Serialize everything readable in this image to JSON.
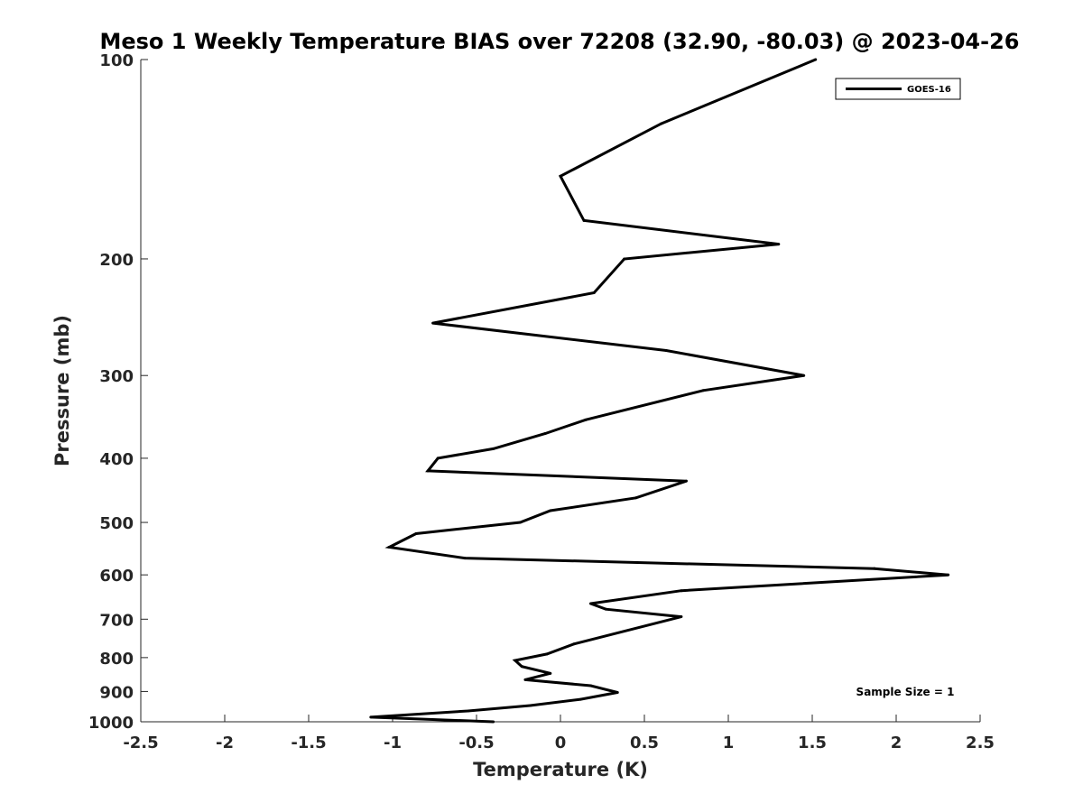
{
  "chart_data": {
    "type": "line",
    "title": "Meso 1 Weekly Temperature BIAS over 72208 (32.90, -80.03) @ 2023-04-26",
    "xlabel": "Temperature (K)",
    "ylabel": "Pressure (mb)",
    "xlim": [
      -2.5,
      2.5
    ],
    "ylim": [
      100,
      1000
    ],
    "yscale": "log",
    "reversed_y": true,
    "grid": false,
    "x_ticks": [
      -2.5,
      -2,
      -1.5,
      -1,
      -0.5,
      0,
      0.5,
      1,
      1.5,
      2,
      2.5
    ],
    "x_tick_labels": [
      "-2.5",
      "-2",
      "-1.5",
      "-1",
      "-0.5",
      "0",
      "0.5",
      "1",
      "1.5",
      "2",
      "2.5"
    ],
    "y_ticks": [
      100,
      200,
      300,
      400,
      500,
      600,
      700,
      800,
      900,
      1000
    ],
    "y_tick_labels": [
      "100",
      "200",
      "300",
      "400",
      "500",
      "600",
      "700",
      "800",
      "900",
      "1000"
    ],
    "legend_position": "top-right",
    "annotation": "Sample Size = 1",
    "series": [
      {
        "name": "GOES-16",
        "color": "#000000",
        "points": [
          {
            "x": 1.52,
            "y": 100
          },
          {
            "x": 0.6,
            "y": 125
          },
          {
            "x": 0.0,
            "y": 150
          },
          {
            "x": 0.14,
            "y": 175
          },
          {
            "x": 1.3,
            "y": 190
          },
          {
            "x": 0.38,
            "y": 200
          },
          {
            "x": 0.2,
            "y": 225
          },
          {
            "x": -0.76,
            "y": 250
          },
          {
            "x": 0.63,
            "y": 275
          },
          {
            "x": 1.45,
            "y": 300
          },
          {
            "x": 0.85,
            "y": 316
          },
          {
            "x": 0.15,
            "y": 350
          },
          {
            "x": -0.09,
            "y": 367
          },
          {
            "x": -0.4,
            "y": 387
          },
          {
            "x": -0.73,
            "y": 400
          },
          {
            "x": -0.79,
            "y": 418
          },
          {
            "x": 0.75,
            "y": 433
          },
          {
            "x": 0.45,
            "y": 459
          },
          {
            "x": -0.06,
            "y": 480
          },
          {
            "x": -0.24,
            "y": 500
          },
          {
            "x": -0.86,
            "y": 520
          },
          {
            "x": -1.02,
            "y": 545
          },
          {
            "x": -0.57,
            "y": 566
          },
          {
            "x": 1.87,
            "y": 587
          },
          {
            "x": 2.31,
            "y": 600
          },
          {
            "x": 0.72,
            "y": 634
          },
          {
            "x": 0.18,
            "y": 663
          },
          {
            "x": 0.27,
            "y": 676
          },
          {
            "x": 0.72,
            "y": 694
          },
          {
            "x": 0.08,
            "y": 763
          },
          {
            "x": -0.08,
            "y": 790
          },
          {
            "x": -0.27,
            "y": 808
          },
          {
            "x": -0.23,
            "y": 825
          },
          {
            "x": -0.06,
            "y": 845
          },
          {
            "x": -0.21,
            "y": 864
          },
          {
            "x": 0.18,
            "y": 882
          },
          {
            "x": 0.34,
            "y": 903
          },
          {
            "x": 0.12,
            "y": 925
          },
          {
            "x": -0.18,
            "y": 945
          },
          {
            "x": -0.55,
            "y": 963
          },
          {
            "x": -1.13,
            "y": 984
          },
          {
            "x": -0.4,
            "y": 1000
          }
        ]
      }
    ]
  }
}
